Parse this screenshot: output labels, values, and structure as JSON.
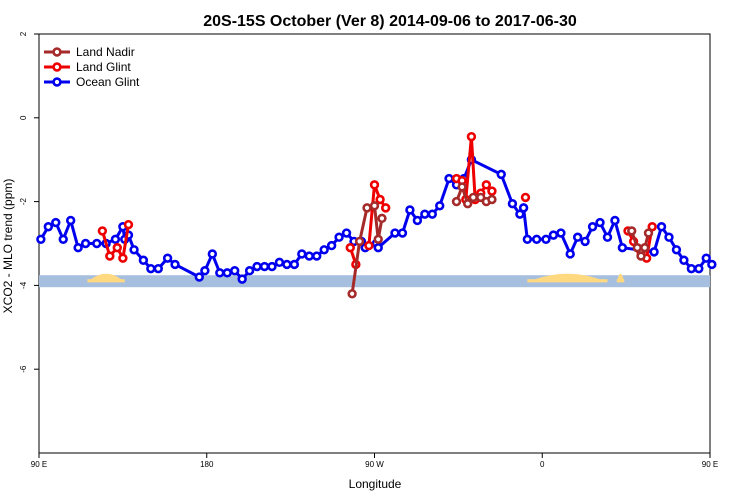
{
  "chart_data": {
    "type": "line",
    "title": "20S-15S October (Ver 8)   2014-09-06 to 2017-06-30",
    "xlabel": "Longitude",
    "ylabel": "XCO2 - MLO trend (ppm)",
    "xlim": [
      90,
      450
    ],
    "ylim": [
      -8,
      2
    ],
    "x_ticks": [
      {
        "value": 90,
        "label": "90 E"
      },
      {
        "value": 180,
        "label": "180"
      },
      {
        "value": 270,
        "label": "90 W"
      },
      {
        "value": 360,
        "label": "0"
      },
      {
        "value": 450,
        "label": "90 E"
      },
      {
        "value": 540,
        "label": "180"
      }
    ],
    "y_ticks": [
      {
        "value": 2,
        "label": "2"
      },
      {
        "value": 0,
        "label": "0"
      },
      {
        "value": -2,
        "label": "-2"
      },
      {
        "value": -4,
        "label": "-4"
      },
      {
        "value": -6,
        "label": "-6"
      }
    ],
    "legend_position": "top-left",
    "grid": false,
    "land_band": {
      "y": -3.9,
      "ocean_color": "#a7bfdf",
      "land_color": "#ffd980",
      "land_ranges": [
        [
          116,
          136
        ],
        [
          352,
          395
        ],
        [
          400,
          404
        ],
        [
          483,
          507
        ]
      ]
    },
    "series": [
      {
        "name": "Ocean Glint",
        "color": "#0000ee",
        "points": [
          [
            91,
            -2.9
          ],
          [
            95,
            -2.6
          ],
          [
            99,
            -2.5
          ],
          [
            103,
            -2.9
          ],
          [
            107,
            -2.45
          ],
          [
            111,
            -3.1
          ],
          [
            115,
            -3.0
          ],
          [
            121,
            -3.0
          ],
          [
            126,
            -3.0
          ],
          [
            131,
            -2.9
          ],
          [
            135,
            -2.6
          ],
          [
            136,
            -2.9
          ],
          [
            138,
            -2.8
          ],
          [
            141,
            -3.15
          ],
          [
            146,
            -3.4
          ],
          [
            150,
            -3.6
          ],
          [
            154,
            -3.6
          ],
          [
            159,
            -3.35
          ],
          [
            163,
            -3.5
          ],
          [
            176,
            -3.8
          ],
          [
            179,
            -3.65
          ],
          [
            183,
            -3.25
          ],
          [
            187,
            -3.7
          ],
          [
            191,
            -3.7
          ],
          [
            195,
            -3.65
          ],
          [
            199,
            -3.85
          ],
          [
            203,
            -3.65
          ],
          [
            207,
            -3.55
          ],
          [
            211,
            -3.55
          ],
          [
            215,
            -3.55
          ],
          [
            219,
            -3.45
          ],
          [
            223,
            -3.5
          ],
          [
            227,
            -3.5
          ],
          [
            231,
            -3.25
          ],
          [
            235,
            -3.3
          ],
          [
            239,
            -3.3
          ],
          [
            243,
            -3.15
          ],
          [
            247,
            -3.05
          ],
          [
            251,
            -2.85
          ],
          [
            255,
            -2.75
          ],
          [
            259,
            -2.95
          ],
          [
            263,
            -2.95
          ],
          [
            265,
            -3.1
          ],
          [
            271,
            -3.0
          ],
          [
            272,
            -3.1
          ],
          [
            281,
            -2.75
          ],
          [
            285,
            -2.75
          ],
          [
            289,
            -2.2
          ],
          [
            293,
            -2.45
          ],
          [
            297,
            -2.3
          ],
          [
            301,
            -2.3
          ],
          [
            305,
            -2.1
          ],
          [
            310,
            -1.45
          ],
          [
            314,
            -1.6
          ],
          [
            318,
            -1.45
          ],
          [
            322,
            -1.0
          ],
          [
            338,
            -1.35
          ],
          [
            344,
            -2.05
          ],
          [
            348,
            -2.3
          ],
          [
            350,
            -2.15
          ],
          [
            352,
            -2.9
          ],
          [
            357,
            -2.9
          ],
          [
            362,
            -2.9
          ],
          [
            366,
            -2.8
          ],
          [
            370,
            -2.75
          ],
          [
            375,
            -3.25
          ],
          [
            379,
            -2.85
          ],
          [
            383,
            -2.95
          ],
          [
            387,
            -2.6
          ],
          [
            391,
            -2.5
          ],
          [
            395,
            -2.85
          ],
          [
            399,
            -2.45
          ],
          [
            403,
            -3.1
          ],
          [
            420,
            -3.2
          ],
          [
            424,
            -2.6
          ],
          [
            428,
            -2.85
          ],
          [
            432,
            -3.15
          ],
          [
            436,
            -3.4
          ],
          [
            440,
            -3.6
          ],
          [
            444,
            -3.6
          ],
          [
            448,
            -3.35
          ],
          [
            451,
            -3.5
          ]
        ]
      },
      {
        "name": "Land Glint",
        "color": "#ee0000",
        "segments": [
          [
            [
              124,
              -2.7
            ],
            [
              128,
              -3.3
            ],
            [
              132,
              -3.1
            ],
            [
              135,
              -3.35
            ],
            [
              138,
              -2.55
            ]
          ],
          [
            [
              257,
              -3.1
            ],
            [
              260,
              -3.5
            ]
          ],
          [
            [
              267,
              -3.05
            ],
            [
              270,
              -1.6
            ],
            [
              273,
              -1.95
            ],
            [
              276,
              -2.15
            ]
          ],
          [
            [
              314,
              -1.45
            ],
            [
              317,
              -1.5
            ],
            [
              319,
              -1.95
            ],
            [
              322,
              -0.45
            ],
            [
              324,
              -1.95
            ],
            [
              327,
              -1.8
            ],
            [
              330,
              -1.6
            ],
            [
              333,
              -1.75
            ]
          ],
          [
            [
              351,
              -1.9
            ]
          ],
          [
            [
              406,
              -2.7
            ],
            [
              409,
              -2.95
            ],
            [
              413,
              -3.2
            ],
            [
              416,
              -3.35
            ],
            [
              419,
              -2.6
            ]
          ]
        ]
      },
      {
        "name": "Land Nadir",
        "color": "#a52a2a",
        "segments": [
          [
            [
              258,
              -4.2
            ],
            [
              262,
              -2.95
            ],
            [
              266,
              -2.15
            ],
            [
              270,
              -2.1
            ],
            [
              272,
              -2.9
            ],
            [
              274,
              -2.4
            ]
          ],
          [
            [
              314,
              -2.0
            ],
            [
              317,
              -1.65
            ],
            [
              320,
              -2.05
            ],
            [
              323,
              -1.9
            ],
            [
              327,
              -1.9
            ],
            [
              330,
              -2.0
            ],
            [
              333,
              -1.95
            ]
          ],
          [
            [
              408,
              -2.7
            ],
            [
              411,
              -3.1
            ],
            [
              413,
              -3.3
            ],
            [
              415,
              -3.1
            ],
            [
              417,
              -2.75
            ]
          ]
        ]
      }
    ]
  }
}
